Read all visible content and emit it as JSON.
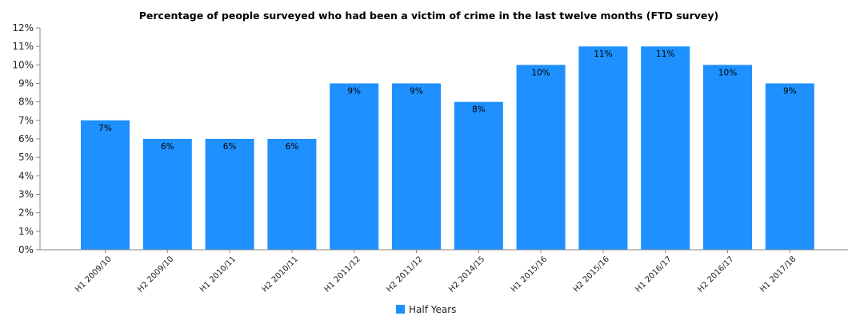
{
  "chart_data": {
    "type": "bar",
    "title": "Percentage of people surveyed who had been a victim of crime in the last twelve months (FTD survey)",
    "xlabel": "",
    "ylabel": "",
    "categories": [
      "H1 2009/10",
      "H2 2009/10",
      "H1 2010/11",
      "H2 2010/11",
      "H1 2011/12",
      "H2 2011/12",
      "H2 2014/15",
      "H1 2015/16",
      "H2 2015/16",
      "H1 2016/17",
      "H2 2016/17",
      "H1 2017/18"
    ],
    "series": [
      {
        "name": "Half Years",
        "color": "#1e90ff",
        "values": [
          7,
          6,
          6,
          6,
          9,
          9,
          8,
          10,
          11,
          11,
          10,
          9
        ],
        "labels": [
          "7%",
          "6%",
          "6%",
          "6%",
          "9%",
          "9%",
          "8%",
          "10%",
          "11%",
          "11%",
          "10%",
          "9%"
        ]
      }
    ],
    "ylim": [
      0,
      12
    ],
    "yticks": [
      "0%",
      "1%",
      "2%",
      "3%",
      "4%",
      "5%",
      "6%",
      "7%",
      "8%",
      "9%",
      "10%",
      "11%",
      "12%"
    ],
    "grid": false,
    "legend": "bottom-center"
  }
}
